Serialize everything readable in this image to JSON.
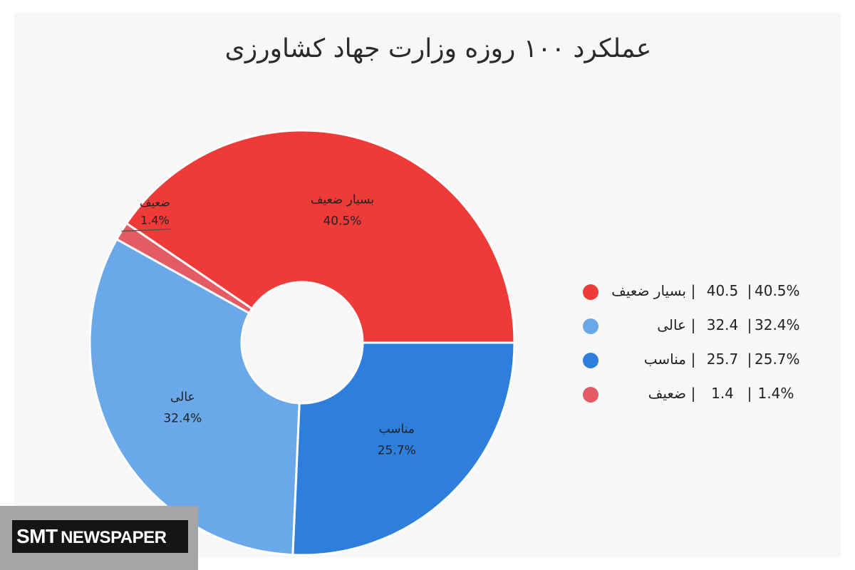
{
  "chart_data": {
    "type": "pie",
    "title": "عملکرد ۱۰۰ روزه وزارت جهاد کشاورزی",
    "donut": true,
    "legend_position": "right",
    "slices": [
      {
        "label": "بسیار ضعیف",
        "value": 40.5,
        "percent": "40.5%",
        "color": "#ef3b37"
      },
      {
        "label": "ضعیف",
        "value": 1.4,
        "percent": "1.4%",
        "color": "#e55b63"
      },
      {
        "label": "عالی",
        "value": 32.4,
        "percent": "32.4%",
        "color": "#6aa8ea"
      },
      {
        "label": "مناسب",
        "value": 25.7,
        "percent": "25.7%",
        "color": "#2e7fdd"
      }
    ],
    "legend": [
      {
        "label": "بسیار ضعیف",
        "sep1": "|",
        "value": "40.5",
        "sep2": "|",
        "percent": "40.5%",
        "color": "#ef3b37"
      },
      {
        "label": "عالی",
        "sep1": "|",
        "value": "32.4",
        "sep2": "|",
        "percent": "32.4%",
        "color": "#6aa8ea"
      },
      {
        "label": "مناسب",
        "sep1": "|",
        "value": "25.7",
        "sep2": "|",
        "percent": "25.7%",
        "color": "#2e7fdd"
      },
      {
        "label": "ضعیف",
        "sep1": "|",
        "value": "1.4",
        "sep2": "|",
        "percent": "1.4%",
        "color": "#e55b63"
      }
    ]
  },
  "watermark": {
    "part1": "SMT",
    "part2": "NEWSPAPER"
  }
}
